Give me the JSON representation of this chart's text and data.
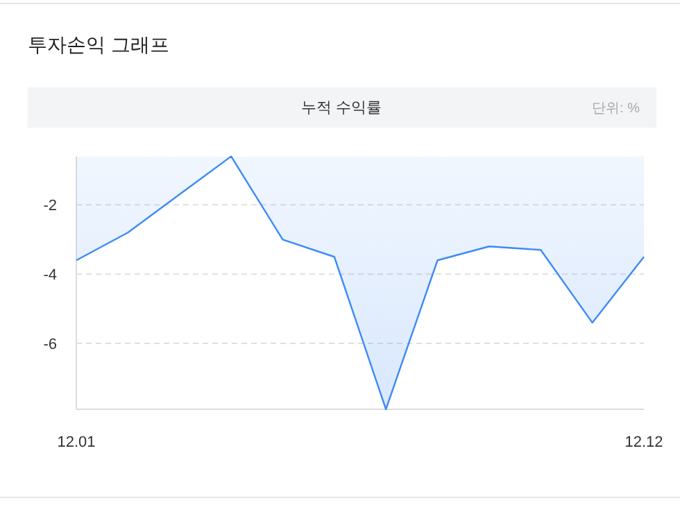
{
  "chart_data": {
    "type": "area",
    "title": "투자손익 그래프",
    "subtitle": "누적 수익률",
    "annotations": [
      "단위: %"
    ],
    "categories": [
      "12.01",
      null,
      null,
      null,
      null,
      null,
      null,
      null,
      null,
      null,
      null,
      "12.12"
    ],
    "values": [
      -3.6,
      -2.8,
      -1.7,
      -0.6,
      -3.0,
      -3.5,
      -7.9,
      -3.6,
      -3.2,
      -3.3,
      -5.4,
      -3.5
    ],
    "color": "#3d8af7",
    "ylim": [
      -7.9,
      -0.6
    ],
    "yticks": [
      -6,
      -4,
      -2
    ],
    "grid": "y"
  }
}
